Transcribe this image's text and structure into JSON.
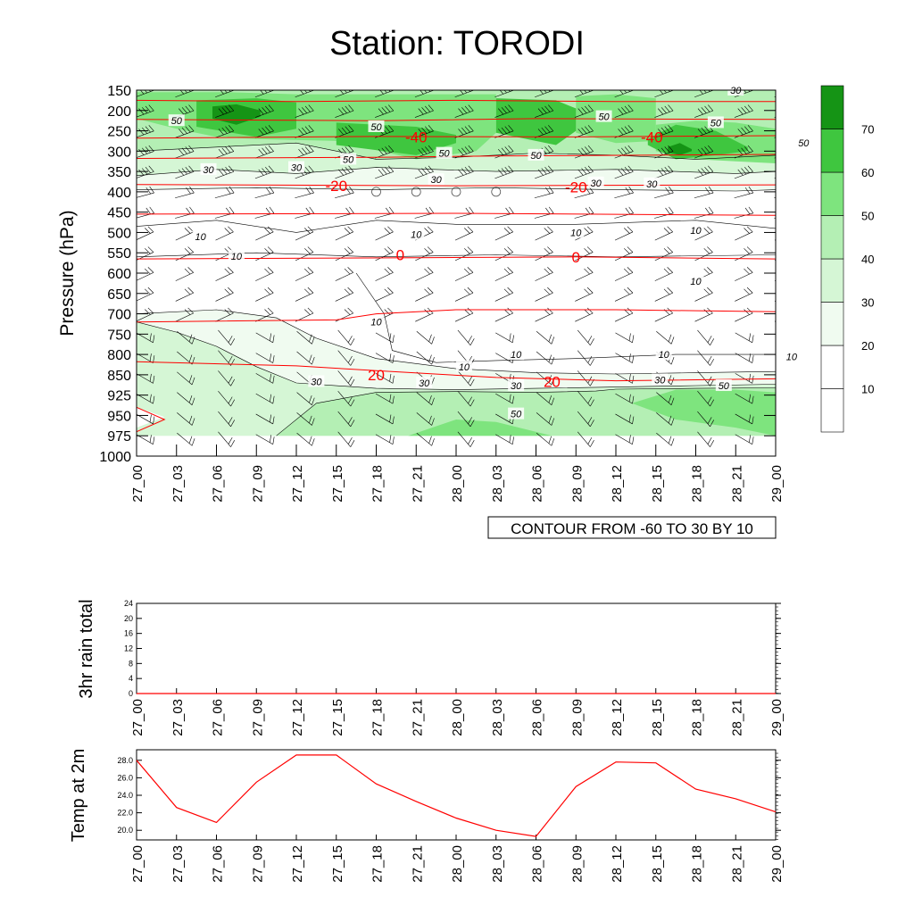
{
  "title": "Station: TORODI",
  "chart_data": [
    {
      "type": "heatmap",
      "title": "Station: TORODI",
      "ylabel": "Pressure (hPa)",
      "y_levels": [
        150,
        200,
        250,
        300,
        350,
        400,
        450,
        500,
        550,
        600,
        650,
        700,
        750,
        800,
        850,
        925,
        950,
        975,
        1000
      ],
      "x_ticks": [
        "27_00",
        "27_03",
        "27_06",
        "27_09",
        "27_12",
        "27_15",
        "27_18",
        "27_21",
        "28_00",
        "28_03",
        "28_06",
        "28_09",
        "28_12",
        "28_15",
        "28_18",
        "28_21",
        "29_00"
      ],
      "colorbar": {
        "levels": [
          10,
          20,
          30,
          40,
          50,
          60,
          70
        ],
        "colors": [
          "#ffffff",
          "#f0fbf0",
          "#d5f6d5",
          "#b4efb4",
          "#7ee47e",
          "#3fc63f",
          "#159415"
        ]
      },
      "contour_note": "CONTOUR FROM -60 TO 30 BY 10",
      "temperature_contour_labels": [
        "-40",
        "-40",
        "-20",
        "-20",
        "0",
        "0",
        "20",
        "20"
      ],
      "speed_contour_labels": [
        "50",
        "50",
        "50",
        "50",
        "50",
        "50",
        "50",
        "30",
        "30",
        "30",
        "30",
        "30",
        "30",
        "10",
        "10",
        "10",
        "10",
        "10",
        "10",
        "10",
        "10",
        "10",
        "30",
        "30",
        "30",
        "30",
        "50",
        "50"
      ]
    },
    {
      "type": "line",
      "ylabel": "3hr rain total",
      "yticks": [
        0,
        4,
        8,
        12,
        16,
        20,
        24
      ],
      "ylim": [
        0,
        24
      ],
      "x": [
        "27_00",
        "27_03",
        "27_06",
        "27_09",
        "27_12",
        "27_15",
        "27_18",
        "27_21",
        "28_00",
        "28_03",
        "28_06",
        "28_09",
        "28_12",
        "28_15",
        "28_18",
        "28_21",
        "29_00"
      ],
      "values": [
        0,
        0,
        0,
        0,
        0,
        0,
        0,
        0,
        0,
        0,
        0,
        0,
        0,
        0,
        0,
        0,
        0
      ]
    },
    {
      "type": "line",
      "ylabel": "Temp at 2m",
      "yticks": [
        "20.0",
        "22.0",
        "24.0",
        "26.0",
        "28.0"
      ],
      "ylim": [
        18.9,
        29.2
      ],
      "x": [
        "27_00",
        "27_03",
        "27_06",
        "27_09",
        "27_12",
        "27_15",
        "27_18",
        "27_21",
        "28_00",
        "28_03",
        "28_06",
        "28_09",
        "28_12",
        "28_15",
        "28_18",
        "28_21",
        "29_00"
      ],
      "values": [
        28.0,
        22.6,
        20.9,
        25.5,
        28.6,
        28.6,
        25.3,
        23.3,
        21.4,
        20.0,
        19.3,
        25.0,
        27.8,
        27.7,
        24.7,
        23.6,
        22.1
      ],
      "color": "#ff0000"
    }
  ]
}
